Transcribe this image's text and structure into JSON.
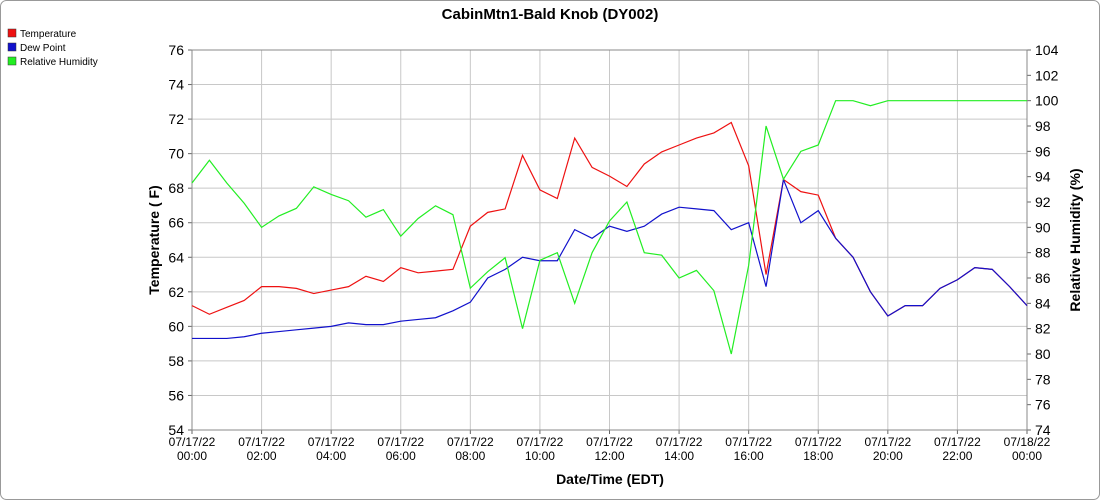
{
  "chart_data": {
    "type": "line",
    "title": "CabinMtn1-Bald Knob (DY002)",
    "x_label": "Date/Time (EDT)",
    "y_label": "Temperature ( F)",
    "y2_label": "Relative Humidity (%)",
    "x": [
      "07/17/22 00:00",
      "07/17/22 00:30",
      "07/17/22 01:00",
      "07/17/22 01:30",
      "07/17/22 02:00",
      "07/17/22 02:30",
      "07/17/22 03:00",
      "07/17/22 03:30",
      "07/17/22 04:00",
      "07/17/22 04:30",
      "07/17/22 05:00",
      "07/17/22 05:30",
      "07/17/22 06:00",
      "07/17/22 06:30",
      "07/17/22 07:00",
      "07/17/22 07:30",
      "07/17/22 08:00",
      "07/17/22 08:30",
      "07/17/22 09:00",
      "07/17/22 09:30",
      "07/17/22 10:00",
      "07/17/22 10:30",
      "07/17/22 11:00",
      "07/17/22 11:30",
      "07/17/22 12:00",
      "07/17/22 12:30",
      "07/17/22 13:00",
      "07/17/22 13:30",
      "07/17/22 14:00",
      "07/17/22 14:30",
      "07/17/22 15:00",
      "07/17/22 15:30",
      "07/17/22 16:00",
      "07/17/22 16:30",
      "07/17/22 17:00",
      "07/17/22 17:30",
      "07/17/22 18:00",
      "07/17/22 18:30",
      "07/17/22 19:00",
      "07/17/22 19:30",
      "07/17/22 20:00",
      "07/17/22 20:30",
      "07/17/22 21:00",
      "07/17/22 21:30",
      "07/17/22 22:00",
      "07/17/22 22:30",
      "07/17/22 23:00",
      "07/17/22 23:30",
      "07/18/22 00:00"
    ],
    "series": [
      {
        "name": "Temperature",
        "color": "#ee1111",
        "values": [
          61.2,
          60.7,
          61.1,
          61.5,
          62.3,
          62.3,
          62.2,
          61.9,
          62.1,
          62.3,
          62.9,
          62.6,
          63.4,
          63.1,
          63.2,
          63.3,
          65.8,
          66.6,
          66.8,
          69.9,
          67.9,
          67.4,
          70.9,
          69.2,
          68.7,
          68.1,
          69.4,
          70.1,
          70.5,
          70.9,
          71.2,
          71.8,
          69.3,
          63.0,
          68.5,
          67.8,
          67.6,
          65.1,
          64.0,
          62.0,
          60.6,
          61.2,
          61.2,
          62.2,
          62.7,
          63.4,
          63.3,
          62.3,
          61.2
        ]
      },
      {
        "name": "Dew Point",
        "color": "#1111cc",
        "values": [
          59.3,
          59.3,
          59.3,
          59.4,
          59.6,
          59.7,
          59.8,
          59.9,
          60.0,
          60.2,
          60.1,
          60.1,
          60.3,
          60.4,
          60.5,
          60.9,
          61.4,
          62.8,
          63.3,
          64.0,
          63.8,
          63.8,
          65.6,
          65.1,
          65.8,
          65.5,
          65.8,
          66.5,
          66.9,
          66.8,
          66.7,
          65.6,
          66.0,
          62.3,
          68.5,
          66.0,
          66.7,
          65.1,
          64.0,
          62.0,
          60.6,
          61.2,
          61.2,
          62.2,
          62.7,
          63.4,
          63.3,
          62.3,
          61.2
        ]
      },
      {
        "name": "Relative Humidity",
        "color": "#22ee22",
        "axis": "y2",
        "values": [
          93.5,
          95.3,
          93.5,
          91.9,
          90.0,
          90.9,
          91.5,
          93.2,
          92.6,
          92.1,
          90.8,
          91.4,
          89.3,
          90.7,
          91.7,
          91.0,
          85.2,
          86.5,
          87.6,
          82.0,
          87.4,
          88.0,
          84.0,
          88.0,
          90.5,
          92.0,
          88.0,
          87.8,
          86.0,
          86.6,
          85.0,
          80.0,
          87.0,
          98.0,
          93.8,
          96.0,
          96.5,
          100,
          100,
          99.6,
          100,
          100,
          100,
          100,
          100,
          100,
          100,
          100,
          100
        ]
      }
    ],
    "xticks": [
      "07/17/22 00:00",
      "07/17/22 02:00",
      "07/17/22 04:00",
      "07/17/22 06:00",
      "07/17/22 08:00",
      "07/17/22 10:00",
      "07/17/22 12:00",
      "07/17/22 14:00",
      "07/17/22 16:00",
      "07/17/22 18:00",
      "07/17/22 20:00",
      "07/17/22 22:00",
      "07/18/22 00:00"
    ],
    "ylim": [
      54,
      76
    ],
    "yticks": [
      54,
      56,
      58,
      60,
      62,
      64,
      66,
      68,
      70,
      72,
      74,
      76
    ],
    "y2lim": [
      74,
      104
    ],
    "y2ticks": [
      74,
      76,
      78,
      80,
      82,
      84,
      86,
      88,
      90,
      92,
      94,
      96,
      98,
      100,
      102,
      104
    ],
    "grid": true
  }
}
